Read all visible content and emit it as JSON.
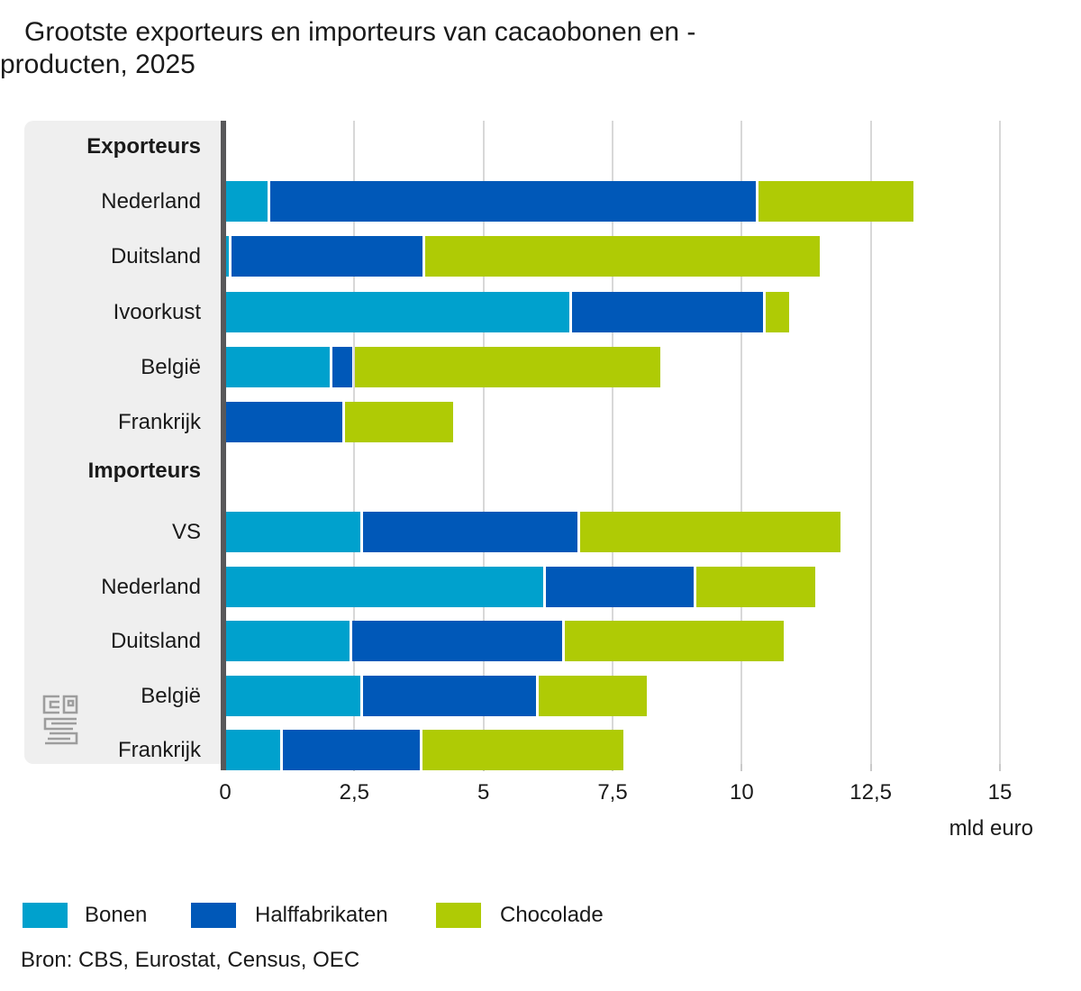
{
  "title": "Grootste exporteurs en importeurs van cacaobonen en -producten, 2025",
  "source": "Bron: CBS, Eurostat, Census, OEC",
  "colors": {
    "bonen": "#00a1cd",
    "halffabrikaten": "#0058b8",
    "chocolade": "#afcb05",
    "panel": "#efefef",
    "axis": "#58585a",
    "gridline": "#d8d8d8",
    "text": "#1a1a1a",
    "logo": "#9d9d9d"
  },
  "icons": {
    "logo": "cbs-logo"
  },
  "x_axis": {
    "ticks": [
      "0",
      "2,5",
      "5",
      "7,5",
      "10",
      "12,5",
      "15"
    ],
    "tick_values": [
      0,
      2.5,
      5,
      7.5,
      10,
      12.5,
      15
    ],
    "unit_label": "mld euro"
  },
  "legend": [
    {
      "label": "Bonen",
      "color_key": "bonen"
    },
    {
      "label": "Halffabrikaten",
      "color_key": "halffabrikaten"
    },
    {
      "label": "Chocolade",
      "color_key": "chocolade"
    }
  ],
  "chart_data": {
    "type": "bar",
    "orientation": "horizontal",
    "stacked": true,
    "title": "Grootste exporteurs en importeurs van cacaobonen en -producten, 2025",
    "xlabel": "mld euro",
    "xlim": [
      0,
      15
    ],
    "grid": true,
    "legend_position": "bottom",
    "series_names": [
      "Bonen",
      "Halffabrikaten",
      "Chocolade"
    ],
    "series_keys": [
      "bonen",
      "halffabrikaten",
      "chocolade"
    ],
    "groups": [
      {
        "label": "Exporteurs",
        "rows": [
          {
            "label": "Nederland",
            "values": [
              0.85,
              9.45,
              3.0
            ]
          },
          {
            "label": "Duitsland",
            "values": [
              0.1,
              3.75,
              7.65
            ]
          },
          {
            "label": "Ivoorkust",
            "values": [
              6.7,
              3.75,
              0.45
            ]
          },
          {
            "label": "België",
            "values": [
              2.05,
              0.45,
              5.9
            ]
          },
          {
            "label": "Frankrijk",
            "values": [
              0.0,
              2.3,
              2.1
            ]
          }
        ]
      },
      {
        "label": "Importeurs",
        "rows": [
          {
            "label": "VS",
            "values": [
              2.65,
              4.2,
              5.05
            ]
          },
          {
            "label": "Nederland",
            "values": [
              6.2,
              2.9,
              2.3
            ]
          },
          {
            "label": "Duitsland",
            "values": [
              2.45,
              4.1,
              4.25
            ]
          },
          {
            "label": "België",
            "values": [
              2.65,
              3.4,
              2.1
            ]
          },
          {
            "label": "Frankrijk",
            "values": [
              1.1,
              2.7,
              3.9
            ]
          }
        ]
      }
    ]
  }
}
